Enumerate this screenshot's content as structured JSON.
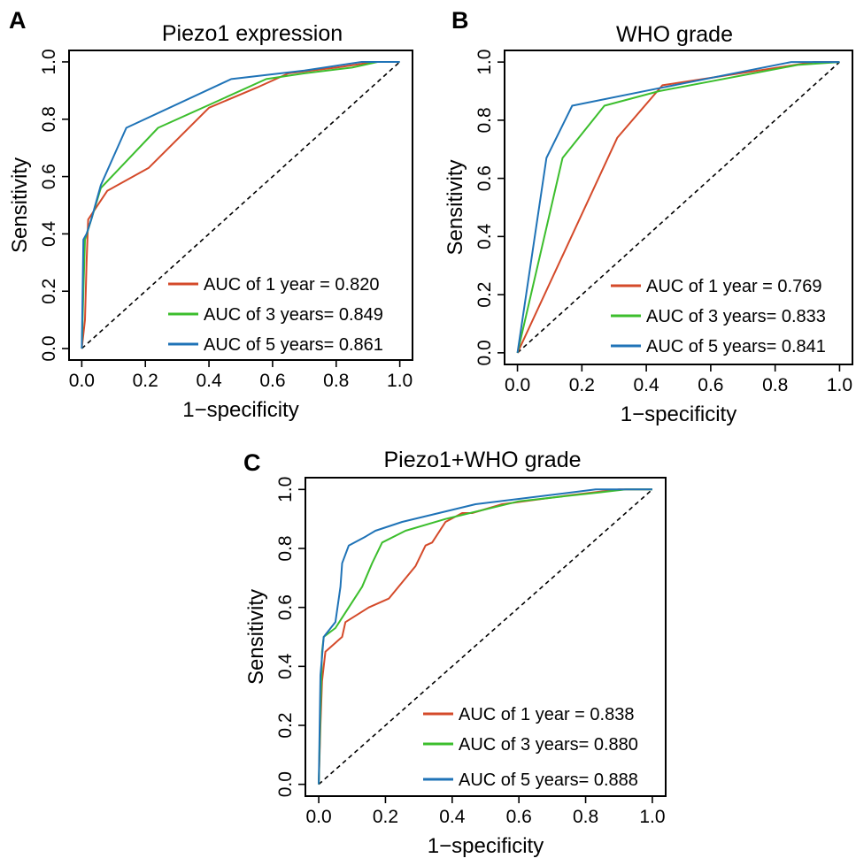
{
  "colors": {
    "one_year": "#d44a2a",
    "three_years": "#3cbe2d",
    "five_years": "#1f73b7",
    "diagonal": "#000000"
  },
  "chart_data": [
    {
      "panel": "A",
      "type": "line",
      "title": "Piezo1 expression",
      "xlabel": "1−specificity",
      "ylabel": "Sensitivity",
      "xlim": [
        0,
        1
      ],
      "ylim": [
        0,
        1
      ],
      "xticks": [
        "0.0",
        "0.2",
        "0.4",
        "0.6",
        "0.8",
        "1.0"
      ],
      "yticks": [
        "0.0",
        "0.2",
        "0.4",
        "0.6",
        "0.8",
        "1.0"
      ],
      "grid": false,
      "legend_position": "bottom-right",
      "diagonal": true,
      "series": [
        {
          "name": "AUC of 1 year  = 0.820",
          "color_key": "one_year",
          "points": [
            [
              0,
              0
            ],
            [
              0.01,
              0.1
            ],
            [
              0.015,
              0.3
            ],
            [
              0.02,
              0.45
            ],
            [
              0.08,
              0.55
            ],
            [
              0.21,
              0.63
            ],
            [
              0.4,
              0.84
            ],
            [
              0.55,
              0.91
            ],
            [
              0.65,
              0.96
            ],
            [
              0.8,
              0.98
            ],
            [
              0.92,
              1.0
            ],
            [
              1.0,
              1.0
            ]
          ]
        },
        {
          "name": "AUC of 3 years= 0.849",
          "color_key": "three_years",
          "points": [
            [
              0,
              0
            ],
            [
              0.005,
              0.2
            ],
            [
              0.01,
              0.38
            ],
            [
              0.03,
              0.45
            ],
            [
              0.06,
              0.56
            ],
            [
              0.24,
              0.77
            ],
            [
              0.4,
              0.85
            ],
            [
              0.58,
              0.94
            ],
            [
              0.7,
              0.96
            ],
            [
              0.85,
              0.98
            ],
            [
              0.93,
              1.0
            ],
            [
              1.0,
              1.0
            ]
          ]
        },
        {
          "name": "AUC of 5 years= 0.861",
          "color_key": "five_years",
          "points": [
            [
              0,
              0
            ],
            [
              0.005,
              0.38
            ],
            [
              0.015,
              0.4
            ],
            [
              0.03,
              0.45
            ],
            [
              0.06,
              0.57
            ],
            [
              0.14,
              0.77
            ],
            [
              0.47,
              0.94
            ],
            [
              0.7,
              0.97
            ],
            [
              0.88,
              1.0
            ],
            [
              1.0,
              1.0
            ]
          ]
        }
      ]
    },
    {
      "panel": "B",
      "type": "line",
      "title": "WHO grade",
      "xlabel": "1−specificity",
      "ylabel": "Sensitivity",
      "xlim": [
        0,
        1
      ],
      "ylim": [
        0,
        1
      ],
      "xticks": [
        "0.0",
        "0.2",
        "0.4",
        "0.6",
        "0.8",
        "1.0"
      ],
      "yticks": [
        "0.0",
        "0.2",
        "0.4",
        "0.6",
        "0.8",
        "1.0"
      ],
      "grid": false,
      "legend_position": "bottom-right",
      "diagonal": true,
      "series": [
        {
          "name": "AUC of 1 year  = 0.769",
          "color_key": "one_year",
          "points": [
            [
              0,
              0
            ],
            [
              0.31,
              0.74
            ],
            [
              0.45,
              0.92
            ],
            [
              0.92,
              1.0
            ],
            [
              1.0,
              1.0
            ]
          ]
        },
        {
          "name": "AUC of 3 years= 0.833",
          "color_key": "three_years",
          "points": [
            [
              0,
              0
            ],
            [
              0.14,
              0.67
            ],
            [
              0.27,
              0.85
            ],
            [
              0.44,
              0.9
            ],
            [
              0.87,
              0.99
            ],
            [
              1.0,
              1.0
            ]
          ]
        },
        {
          "name": "AUC of 5 years= 0.841",
          "color_key": "five_years",
          "points": [
            [
              0,
              0
            ],
            [
              0.09,
              0.67
            ],
            [
              0.17,
              0.85
            ],
            [
              0.44,
              0.91
            ],
            [
              0.85,
              1.0
            ],
            [
              1.0,
              1.0
            ]
          ]
        }
      ]
    },
    {
      "panel": "C",
      "type": "line",
      "title": "Piezo1+WHO grade",
      "xlabel": "1−specificity",
      "ylabel": "Sensitivity",
      "xlim": [
        0,
        1
      ],
      "ylim": [
        0,
        1
      ],
      "xticks": [
        "0.0",
        "0.2",
        "0.4",
        "0.6",
        "0.8",
        "1.0"
      ],
      "yticks": [
        "0.0",
        "0.2",
        "0.4",
        "0.6",
        "0.8",
        "1.0"
      ],
      "grid": false,
      "legend_position": "bottom-right",
      "diagonal": true,
      "series": [
        {
          "name": "AUC of 1 year  = 0.838",
          "color_key": "one_year",
          "points": [
            [
              0,
              0
            ],
            [
              0.005,
              0.2
            ],
            [
              0.01,
              0.35
            ],
            [
              0.02,
              0.45
            ],
            [
              0.05,
              0.48
            ],
            [
              0.07,
              0.5
            ],
            [
              0.08,
              0.55
            ],
            [
              0.15,
              0.6
            ],
            [
              0.21,
              0.63
            ],
            [
              0.29,
              0.74
            ],
            [
              0.32,
              0.81
            ],
            [
              0.34,
              0.82
            ],
            [
              0.38,
              0.89
            ],
            [
              0.43,
              0.92
            ],
            [
              0.46,
              0.92
            ],
            [
              0.55,
              0.95
            ],
            [
              0.75,
              0.98
            ],
            [
              0.9,
              1.0
            ],
            [
              1.0,
              1.0
            ]
          ]
        },
        {
          "name": "AUC of 3 years= 0.880",
          "color_key": "three_years",
          "points": [
            [
              0,
              0
            ],
            [
              0.005,
              0.25
            ],
            [
              0.01,
              0.45
            ],
            [
              0.015,
              0.5
            ],
            [
              0.05,
              0.53
            ],
            [
              0.13,
              0.67
            ],
            [
              0.16,
              0.75
            ],
            [
              0.19,
              0.82
            ],
            [
              0.26,
              0.86
            ],
            [
              0.38,
              0.9
            ],
            [
              0.6,
              0.96
            ],
            [
              0.84,
              0.99
            ],
            [
              0.92,
              1.0
            ],
            [
              1.0,
              1.0
            ]
          ]
        },
        {
          "name": "AUC of 5 years= 0.888",
          "color_key": "five_years",
          "points": [
            [
              0,
              0
            ],
            [
              0.005,
              0.37
            ],
            [
              0.015,
              0.5
            ],
            [
              0.05,
              0.55
            ],
            [
              0.065,
              0.67
            ],
            [
              0.07,
              0.75
            ],
            [
              0.09,
              0.81
            ],
            [
              0.14,
              0.84
            ],
            [
              0.17,
              0.86
            ],
            [
              0.25,
              0.89
            ],
            [
              0.47,
              0.95
            ],
            [
              0.83,
              1.0
            ],
            [
              1.0,
              1.0
            ]
          ]
        }
      ]
    }
  ]
}
